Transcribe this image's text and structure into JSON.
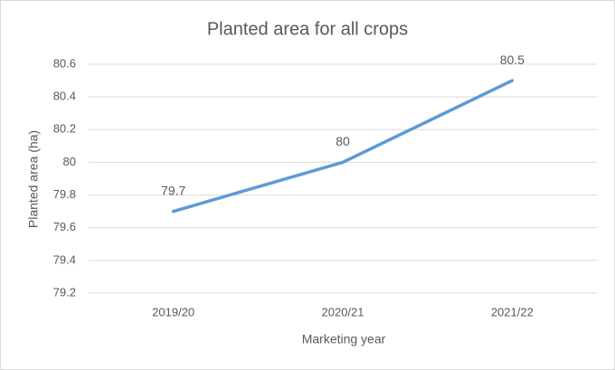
{
  "chart_data": {
    "type": "line",
    "title": "Planted area for all crops",
    "x_label": "Marketing year",
    "y_label": "Planted area (ha)",
    "categories": [
      "2019/20",
      "2020/21",
      "2021/22"
    ],
    "values": [
      79.7,
      80,
      80.5
    ],
    "color": "#5b9bd5",
    "ylim": [
      79.2,
      80.6
    ],
    "yticks": [
      79.2,
      79.4,
      79.6,
      79.8,
      80,
      80.2,
      80.4,
      80.6
    ],
    "grid": true
  }
}
